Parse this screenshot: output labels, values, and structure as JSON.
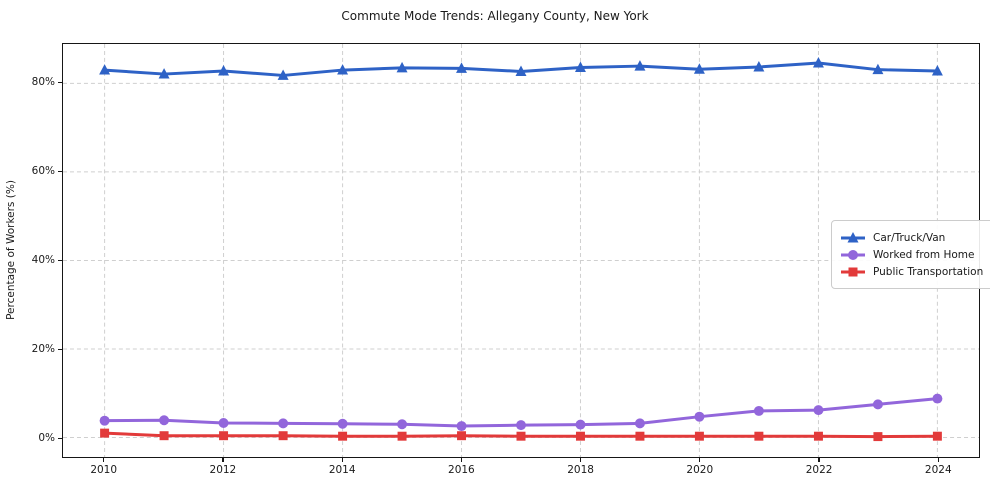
{
  "chart_data": {
    "type": "line",
    "title": "Commute Mode Trends: Allegany County, New York",
    "xlabel": "",
    "ylabel": "Percentage of Workers (%)",
    "grid": true,
    "legend_position": "center-right",
    "x": [
      2010,
      2011,
      2012,
      2013,
      2014,
      2015,
      2016,
      2017,
      2018,
      2019,
      2020,
      2021,
      2022,
      2023,
      2024
    ],
    "xlim": [
      2009.3,
      2024.7
    ],
    "ylim": [
      -4.4,
      88.9
    ],
    "xticks": [
      {
        "value": 2010,
        "label": "2010"
      },
      {
        "value": 2012,
        "label": "2012"
      },
      {
        "value": 2014,
        "label": "2014"
      },
      {
        "value": 2016,
        "label": "2016"
      },
      {
        "value": 2018,
        "label": "2018"
      },
      {
        "value": 2020,
        "label": "2020"
      },
      {
        "value": 2022,
        "label": "2022"
      },
      {
        "value": 2024,
        "label": "2024"
      }
    ],
    "yticks": [
      {
        "value": 0,
        "label": "0%"
      },
      {
        "value": 20,
        "label": "20%"
      },
      {
        "value": 40,
        "label": "40%"
      },
      {
        "value": 60,
        "label": "60%"
      },
      {
        "value": 80,
        "label": "80%"
      }
    ],
    "series": [
      {
        "name": "Car/Truck/Van",
        "color": "#2e62c6",
        "marker": "triangle",
        "values": [
          83.0,
          82.1,
          82.8,
          81.8,
          83.0,
          83.5,
          83.4,
          82.7,
          83.6,
          83.9,
          83.2,
          83.7,
          84.6,
          83.1,
          82.8
        ]
      },
      {
        "name": "Worked from Home",
        "color": "#9266db",
        "marker": "circle",
        "values": [
          3.8,
          3.9,
          3.3,
          3.2,
          3.1,
          3.0,
          2.6,
          2.8,
          2.9,
          3.2,
          4.7,
          6.0,
          6.2,
          7.5,
          8.8
        ]
      },
      {
        "name": "Public Transportation",
        "color": "#e23a3a",
        "marker": "square",
        "values": [
          1.0,
          0.4,
          0.4,
          0.4,
          0.3,
          0.3,
          0.4,
          0.3,
          0.3,
          0.3,
          0.3,
          0.3,
          0.3,
          0.2,
          0.3
        ]
      }
    ]
  }
}
